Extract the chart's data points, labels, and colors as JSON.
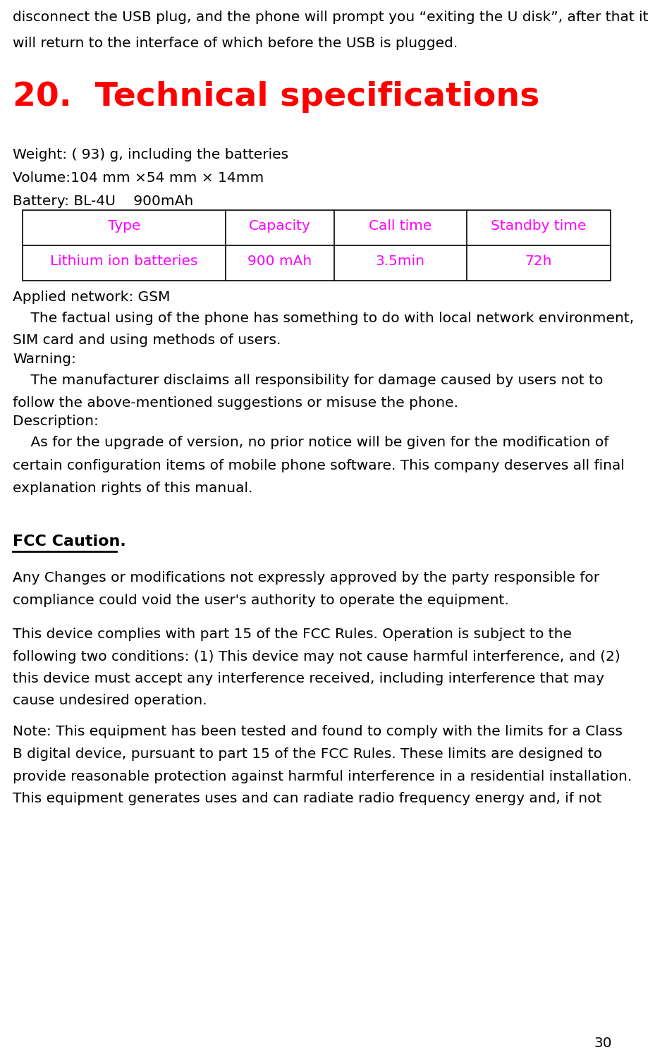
{
  "bg_color": "#ffffff",
  "text_color": "#000000",
  "magenta_color": "#ff00ff",
  "red_color": "#ff0000",
  "page_number": "30",
  "line1": "disconnect the USB plug, and the phone will prompt you “exiting the U disk”, after that it",
  "line2": "will return to the interface of which before the USB is plugged.",
  "section_title": "20.  Technical specifications",
  "weight_line": "Weight: ( 93) g, including the batteries",
  "volume_line": "Volume:104 mm ×54 mm × 14mm",
  "battery_line": "Battery: BL-4U    900mAh",
  "table_headers": [
    "Type",
    "Capacity",
    "Call time",
    "Standby time"
  ],
  "table_row": [
    "Lithium ion batteries",
    "900 mAh",
    "3.5min",
    "72h"
  ],
  "applied_network": "Applied network: GSM",
  "para1_line1": "    The factual using of the phone has something to do with local network environment,",
  "para1_line2": "SIM card and using methods of users.",
  "warning_label": "Warning:",
  "para2_line1": "    The manufacturer disclaims all responsibility for damage caused by users not to",
  "para2_line2": "follow the above-mentioned suggestions or misuse the phone.",
  "description_label": "Description:",
  "para3_line1": "    As for the upgrade of version, no prior notice will be given for the modification of",
  "para3_line2": "certain configuration items of mobile phone software. This company deserves all final",
  "para3_line3": "explanation rights of this manual.",
  "fcc_title": "FCC Caution.",
  "fcc_p1_line1": "Any Changes or modifications not expressly approved by the party responsible for",
  "fcc_p1_line2": "compliance could void the user's authority to operate the equipment.",
  "fcc_p2_line1": "This device complies with part 15 of the FCC Rules. Operation is subject to the",
  "fcc_p2_line2": "following two conditions: (1) This device may not cause harmful interference, and (2)",
  "fcc_p2_line3": "this device must accept any interference received, including interference that may",
  "fcc_p2_line4": "cause undesired operation.",
  "fcc_p3_line1": "Note: This equipment has been tested and found to comply with the limits for a Class",
  "fcc_p3_line2": "B digital device, pursuant to part 15 of the FCC Rules. These limits are designed to",
  "fcc_p3_line3": "provide reasonable protection against harmful interference in a residential installation.",
  "fcc_p3_line4": "This equipment generates uses and can radiate radio frequency energy and, if not"
}
